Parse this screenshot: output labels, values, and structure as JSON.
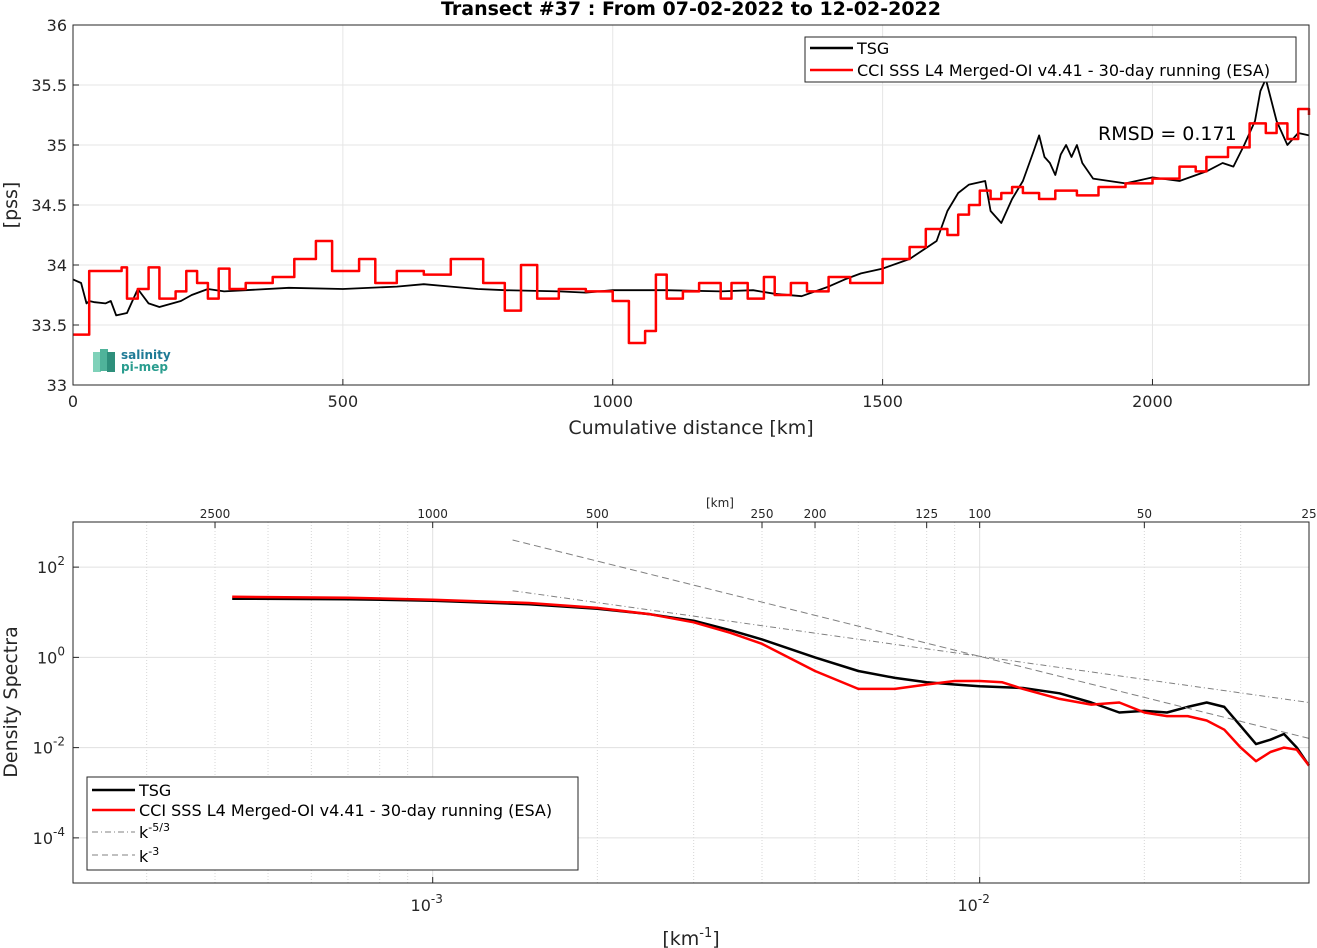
{
  "chart_data": [
    {
      "type": "line",
      "title": "Transect #37 : From 07-02-2022 to 12-02-2022",
      "xlabel": "Cumulative distance [km]",
      "ylabel": "[pss]",
      "xlim": [
        0,
        2290
      ],
      "ylim": [
        33,
        36
      ],
      "xticks": [
        "0",
        "500",
        "1000",
        "1500",
        "2000"
      ],
      "yticks": [
        "33",
        "33.5",
        "34",
        "34.5",
        "35",
        "35.5",
        "36"
      ],
      "grid": true,
      "legend": "top-right",
      "annotation": "RMSD = 0.171",
      "logo": {
        "line1": "salinity",
        "line2": "pi-mep"
      },
      "series": [
        {
          "name": "TSG",
          "color": "#000000",
          "x": [
            0,
            15,
            25,
            30,
            40,
            60,
            70,
            80,
            100,
            115,
            120,
            140,
            160,
            200,
            220,
            250,
            280,
            320,
            400,
            500,
            600,
            650,
            700,
            750,
            800,
            900,
            950,
            1000,
            1100,
            1200,
            1260,
            1300,
            1350,
            1400,
            1430,
            1460,
            1500,
            1550,
            1600,
            1620,
            1640,
            1660,
            1690,
            1700,
            1720,
            1740,
            1760,
            1780,
            1790,
            1800,
            1810,
            1820,
            1830,
            1840,
            1850,
            1860,
            1870,
            1890,
            1950,
            2000,
            2050,
            2100,
            2130,
            2150,
            2170,
            2190,
            2200,
            2210,
            2230,
            2250,
            2270,
            2290
          ],
          "y": [
            33.88,
            33.85,
            33.68,
            33.7,
            33.69,
            33.68,
            33.7,
            33.58,
            33.6,
            33.75,
            33.8,
            33.68,
            33.65,
            33.7,
            33.75,
            33.8,
            33.78,
            33.79,
            33.81,
            33.8,
            33.82,
            33.84,
            33.82,
            33.8,
            33.79,
            33.78,
            33.77,
            33.79,
            33.79,
            33.78,
            33.79,
            33.76,
            33.74,
            33.82,
            33.88,
            33.93,
            33.97,
            34.05,
            34.2,
            34.45,
            34.6,
            34.67,
            34.7,
            34.45,
            34.35,
            34.55,
            34.7,
            34.95,
            35.08,
            34.9,
            34.85,
            34.75,
            34.92,
            35.0,
            34.9,
            35.0,
            34.85,
            34.72,
            34.68,
            34.73,
            34.7,
            34.78,
            34.85,
            34.82,
            35.0,
            35.2,
            35.45,
            35.55,
            35.2,
            35.0,
            35.1,
            35.08
          ]
        },
        {
          "name": "CCI SSS L4 Merged-OI v4.41 - 30-day running (ESA)",
          "color": "#ff0000",
          "x": [
            0,
            30,
            60,
            90,
            100,
            120,
            140,
            160,
            190,
            210,
            230,
            250,
            270,
            290,
            320,
            370,
            410,
            450,
            480,
            530,
            560,
            600,
            650,
            700,
            760,
            800,
            830,
            860,
            900,
            950,
            1000,
            1030,
            1060,
            1080,
            1100,
            1130,
            1160,
            1200,
            1220,
            1250,
            1280,
            1300,
            1330,
            1360,
            1400,
            1440,
            1500,
            1550,
            1580,
            1620,
            1640,
            1660,
            1680,
            1700,
            1720,
            1740,
            1760,
            1790,
            1820,
            1860,
            1900,
            1950,
            2000,
            2050,
            2080,
            2100,
            2140,
            2180,
            2210,
            2230,
            2250,
            2270,
            2290
          ],
          "y": [
            33.42,
            33.95,
            33.95,
            33.98,
            33.72,
            33.8,
            33.98,
            33.72,
            33.78,
            33.95,
            33.85,
            33.72,
            33.97,
            33.8,
            33.85,
            33.9,
            34.05,
            34.2,
            33.95,
            34.05,
            33.85,
            33.95,
            33.92,
            34.05,
            33.85,
            33.62,
            34.0,
            33.72,
            33.8,
            33.78,
            33.7,
            33.35,
            33.45,
            33.92,
            33.72,
            33.78,
            33.85,
            33.72,
            33.85,
            33.72,
            33.9,
            33.75,
            33.85,
            33.78,
            33.9,
            33.85,
            34.05,
            34.15,
            34.3,
            34.25,
            34.42,
            34.5,
            34.62,
            34.55,
            34.6,
            34.65,
            34.6,
            34.55,
            34.62,
            34.58,
            34.65,
            34.68,
            34.72,
            34.82,
            34.78,
            34.9,
            34.98,
            35.18,
            35.1,
            35.18,
            35.05,
            35.3,
            35.25
          ]
        }
      ]
    },
    {
      "type": "line",
      "title": "",
      "xlabel": "[km⁻¹]",
      "ylabel": "Density Spectra",
      "xscale": "log",
      "yscale": "log",
      "xlim": [
        0.00022,
        0.04
      ],
      "ylim": [
        1e-05,
        1000
      ],
      "xticks": [
        "10⁻³",
        "10⁻²"
      ],
      "yticks": [
        "10⁻⁴",
        "10⁻²",
        "10⁰",
        "10²"
      ],
      "top_axis_label": "[km]",
      "top_ticks": [
        "2500",
        "1000",
        "500",
        "250",
        "200",
        "125",
        "100",
        "50",
        "25"
      ],
      "grid": true,
      "legend": "bottom-left",
      "series": [
        {
          "name": "TSG",
          "color": "#000000",
          "x": [
            0.00043,
            0.0007,
            0.001,
            0.0015,
            0.002,
            0.0025,
            0.003,
            0.0035,
            0.004,
            0.005,
            0.006,
            0.007,
            0.008,
            0.009,
            0.01,
            0.012,
            0.014,
            0.016,
            0.018,
            0.02,
            0.022,
            0.024,
            0.026,
            0.028,
            0.03,
            0.032,
            0.034,
            0.036,
            0.038,
            0.04
          ],
          "y": [
            20,
            19.5,
            18,
            15,
            12,
            9,
            6.5,
            4,
            2.5,
            1.0,
            0.5,
            0.35,
            0.28,
            0.25,
            0.23,
            0.21,
            0.16,
            0.1,
            0.06,
            0.065,
            0.06,
            0.08,
            0.1,
            0.08,
            0.03,
            0.012,
            0.015,
            0.02,
            0.01,
            0.004
          ]
        },
        {
          "name": "CCI SSS L4 Merged-OI v4.41 - 30-day running (ESA)",
          "color": "#ff0000",
          "x": [
            0.00043,
            0.0007,
            0.001,
            0.0015,
            0.002,
            0.0025,
            0.003,
            0.0035,
            0.004,
            0.005,
            0.006,
            0.007,
            0.008,
            0.009,
            0.01,
            0.011,
            0.012,
            0.014,
            0.016,
            0.018,
            0.02,
            0.022,
            0.024,
            0.026,
            0.028,
            0.03,
            0.032,
            0.034,
            0.036,
            0.038,
            0.04
          ],
          "y": [
            22,
            21,
            19,
            16,
            12.5,
            9,
            6,
            3.5,
            2.0,
            0.5,
            0.2,
            0.2,
            0.25,
            0.3,
            0.3,
            0.28,
            0.2,
            0.12,
            0.09,
            0.1,
            0.06,
            0.05,
            0.05,
            0.04,
            0.025,
            0.01,
            0.005,
            0.008,
            0.01,
            0.009,
            0.004
          ]
        },
        {
          "name": "k⁻⁵‧³",
          "color": "#808080",
          "style": "dash-dot",
          "x": [
            0.0014,
            0.04
          ],
          "y": [
            30,
            0.1
          ]
        },
        {
          "name": "k⁻³",
          "color": "#808080",
          "style": "dashed",
          "x": [
            0.0014,
            0.04
          ],
          "y": [
            400,
            0.016
          ]
        }
      ]
    }
  ],
  "legend_top": {
    "items": [
      "TSG",
      "CCI SSS L4 Merged-OI v4.41 - 30-day running (ESA)"
    ]
  },
  "legend_bottom": {
    "items": [
      "TSG",
      "CCI SSS L4 Merged-OI v4.41 - 30-day running (ESA)",
      "k",
      "k"
    ],
    "sup": [
      "",
      "",
      "-5/3",
      "-3"
    ]
  },
  "tick_sup_x": [
    "-3",
    "-2"
  ],
  "tick_sup_y": [
    "-4",
    "-2",
    "0",
    "2"
  ],
  "bottom_xlabel_base": "[km",
  "bottom_xlabel_sup": "-1",
  "bottom_xlabel_end": "]"
}
